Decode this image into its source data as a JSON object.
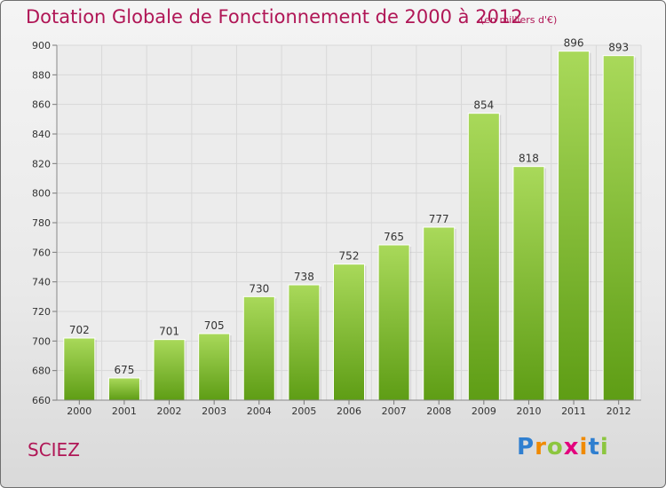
{
  "title": "Dotation Globale de Fonctionnement de 2000 à 2012",
  "subtitle": "(en milliers d'€)",
  "commune": "SCIEZ",
  "logo": {
    "letters": [
      {
        "ch": "P",
        "color": "#2f7fd0"
      },
      {
        "ch": "r",
        "color": "#f08a00"
      },
      {
        "ch": "o",
        "color": "#8cc63f"
      },
      {
        "ch": "x",
        "color": "#e3007d"
      },
      {
        "ch": "i",
        "color": "#f08a00"
      },
      {
        "ch": "t",
        "color": "#2f7fd0"
      },
      {
        "ch": "i",
        "color": "#8cc63f"
      }
    ]
  },
  "colors": {
    "accent": "#b01656",
    "bar_light": "#a9d95a",
    "bar_dark": "#5e9d15",
    "grid": "#d8d8d8",
    "axis_text": "#333333"
  },
  "chart_data": {
    "type": "bar",
    "categories": [
      "2000",
      "2001",
      "2002",
      "2003",
      "2004",
      "2005",
      "2006",
      "2007",
      "2008",
      "2009",
      "2010",
      "2011",
      "2012"
    ],
    "values": [
      702,
      675,
      701,
      705,
      730,
      738,
      752,
      765,
      777,
      854,
      818,
      896,
      893
    ],
    "ylim": [
      660,
      900
    ],
    "yticks": [
      660,
      680,
      700,
      720,
      740,
      760,
      780,
      800,
      820,
      840,
      860,
      880,
      900
    ],
    "grid": true,
    "data_labels": true
  }
}
